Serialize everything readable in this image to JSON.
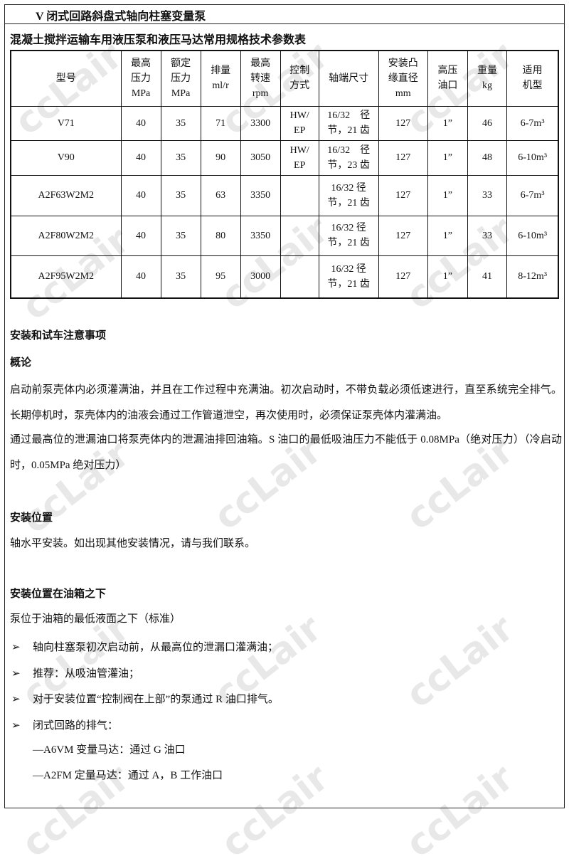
{
  "header": {
    "title": "V 闭式回路斜盘式轴向柱塞变量泵"
  },
  "table": {
    "title": "混凝土搅拌运输车用液压泵和液压马达常用规格技术参数表",
    "columns": [
      "型号",
      "最高\n压力\nMPa",
      "额定\n压力\nMPa",
      "排量\nml/r",
      "最高\n转速\nrpm",
      "控制\n方式",
      "轴端尺寸",
      "安装凸\n缘直径\nmm",
      "高压\n油口",
      "重量\nkg",
      "适用\n机型"
    ],
    "rows": [
      [
        "V71",
        "40",
        "35",
        "71",
        "3300",
        "HW/\nEP",
        "16/32　径\n节，21 齿",
        "127",
        "1”",
        "46",
        "6-7m³"
      ],
      [
        "V90",
        "40",
        "35",
        "90",
        "3050",
        "HW/\nEP",
        "16/32　径\n节，23 齿",
        "127",
        "1”",
        "48",
        "6-10m³"
      ],
      [
        "A2F63W2M2",
        "40",
        "35",
        "63",
        "3350",
        "",
        "16/32 径\n节，21 齿",
        "127",
        "1”",
        "33",
        "6-7m³"
      ],
      [
        "A2F80W2M2",
        "40",
        "35",
        "80",
        "3350",
        "",
        "16/32 径\n节，21 齿",
        "127",
        "1”",
        "33",
        "6-10m³"
      ],
      [
        "A2F95W2M2",
        "40",
        "35",
        "95",
        "3000",
        "",
        "16/32 径\n节，21 齿",
        "127",
        "1”",
        "41",
        "8-12m³"
      ]
    ]
  },
  "notes": {
    "title": "安装和试车注意事项",
    "overview": {
      "heading": "概论",
      "paragraphs": [
        "启动前泵壳体内必须灌满油，并且在工作过程中充满油。初次启动时，不带负载必须低速进行，直至系统完全排气。长期停机时，泵壳体内的油液会通过工作管道泄空，再次使用时，必须保证泵壳体内灌满油。",
        "通过最高位的泄漏油口将泵壳体内的泄漏油排回油箱。S 油口的最低吸油压力不能低于 0.08MPa（绝对压力）（冷启动时，0.05MPa 绝对压力）"
      ]
    },
    "position": {
      "heading": "安装位置",
      "text": "轴水平安装。如出现其他安装情况，请与我们联系。"
    },
    "below_tank": {
      "heading": "安装位置在油箱之下",
      "text": "泵位于油箱的最低液面之下（标准）",
      "bullets": [
        "轴向柱塞泵初次启动前，从最高位的泄漏口灌满油；",
        "推荐：从吸油管灌油；",
        "对于安装位置“控制阀在上部”的泵通过 R 油口排气。",
        "闭式回路的排气："
      ],
      "sub_items": [
        "—A6VM 变量马达：通过 G 油口",
        "—A2FM 定量马达：通过 A，B 工作油口"
      ]
    }
  },
  "watermark": "ccLair"
}
